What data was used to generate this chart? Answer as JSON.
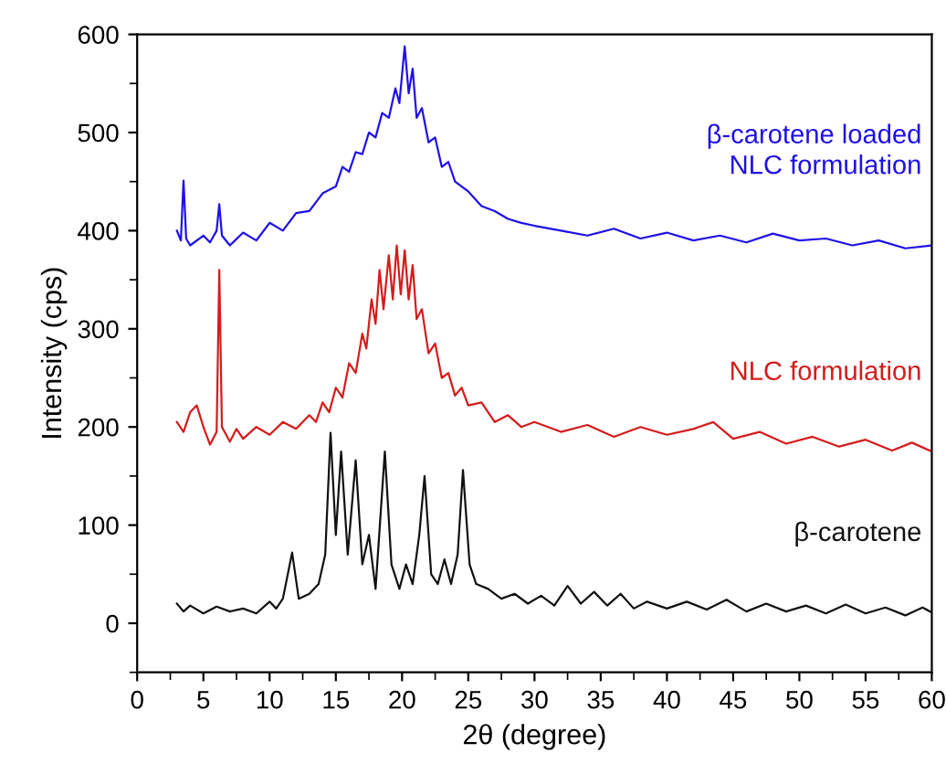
{
  "chart_data": {
    "type": "line",
    "xlabel": "2θ (degree)",
    "ylabel": "Intensity (cps)",
    "xlim": [
      0,
      60
    ],
    "xticks": [
      0,
      5,
      10,
      15,
      20,
      25,
      30,
      35,
      40,
      45,
      50,
      55,
      60
    ],
    "ylim": [
      -50,
      600
    ],
    "yticks": [
      0,
      100,
      200,
      300,
      400,
      500,
      600
    ],
    "grid": false,
    "legend": false,
    "marker": "none",
    "line_style": "solid",
    "series": [
      {
        "name": "β-carotene loaded\nNLC formulation",
        "color": "#1f10e6",
        "x": [
          3,
          3.3,
          3.5,
          3.7,
          4,
          5,
          5.5,
          6,
          6.2,
          6.4,
          7,
          8,
          9,
          10,
          11,
          12,
          13,
          14,
          15,
          15.5,
          16,
          16.5,
          17,
          17.5,
          18,
          18.5,
          19,
          19.5,
          19.8,
          20.2,
          20.5,
          20.8,
          21.1,
          21.5,
          22,
          22.5,
          23,
          23.5,
          24,
          25,
          26,
          27,
          28,
          29,
          30,
          32,
          34,
          36,
          38,
          40,
          42,
          44,
          46,
          48,
          50,
          52,
          54,
          56,
          58,
          60
        ],
        "values": [
          400,
          390,
          451,
          392,
          385,
          395,
          388,
          400,
          427,
          395,
          385,
          398,
          390,
          408,
          400,
          418,
          420,
          438,
          445,
          465,
          460,
          480,
          478,
          500,
          495,
          520,
          515,
          545,
          530,
          588,
          540,
          565,
          515,
          525,
          490,
          495,
          465,
          470,
          450,
          440,
          425,
          420,
          412,
          408,
          405,
          400,
          395,
          402,
          392,
          398,
          390,
          395,
          388,
          397,
          390,
          392,
          385,
          390,
          382,
          385
        ]
      },
      {
        "name": "NLC formulation",
        "color": "#d41c1c",
        "x": [
          3,
          3.5,
          4,
          4.5,
          5,
          5.5,
          6,
          6.2,
          6.4,
          7,
          7.5,
          8,
          9,
          10,
          11,
          12,
          13,
          13.5,
          14,
          14.5,
          15,
          15.5,
          16,
          16.5,
          17,
          17.3,
          17.7,
          18,
          18.3,
          18.6,
          19,
          19.3,
          19.6,
          19.9,
          20.2,
          20.5,
          20.8,
          21.1,
          21.5,
          22,
          22.5,
          23,
          23.5,
          24,
          24.5,
          25,
          26,
          27,
          28,
          29,
          30,
          32,
          34,
          36,
          38,
          40,
          42,
          43.5,
          45,
          47,
          49,
          51,
          53,
          55,
          57,
          58.5,
          60
        ],
        "values": [
          205,
          195,
          215,
          222,
          200,
          182,
          195,
          360,
          200,
          185,
          198,
          188,
          200,
          192,
          205,
          198,
          212,
          205,
          225,
          215,
          240,
          230,
          265,
          255,
          295,
          280,
          330,
          305,
          360,
          320,
          375,
          330,
          385,
          335,
          380,
          330,
          365,
          310,
          320,
          275,
          285,
          250,
          255,
          232,
          240,
          222,
          225,
          205,
          212,
          200,
          205,
          195,
          202,
          190,
          200,
          192,
          198,
          205,
          188,
          195,
          183,
          190,
          180,
          187,
          176,
          184,
          175
        ]
      },
      {
        "name": "β-carotene",
        "color": "#111111",
        "x": [
          3,
          3.5,
          4,
          5,
          6,
          7,
          8,
          9,
          10,
          10.5,
          11,
          11.7,
          12.2,
          13,
          13.7,
          14.2,
          14.6,
          15,
          15.4,
          15.9,
          16.5,
          17,
          17.5,
          18,
          18.7,
          19.2,
          19.8,
          20.3,
          20.8,
          21.3,
          21.7,
          22.2,
          22.7,
          23.2,
          23.7,
          24.2,
          24.6,
          25.1,
          25.6,
          26.5,
          27.5,
          28.5,
          29.5,
          30.5,
          31.5,
          32.5,
          33.5,
          34.5,
          35.5,
          36.5,
          37.5,
          38.5,
          40,
          41.5,
          43,
          44.5,
          46,
          47.5,
          49,
          50.5,
          52,
          53.5,
          55,
          56.5,
          58,
          59.3,
          60
        ],
        "values": [
          20,
          12,
          18,
          10,
          17,
          12,
          15,
          10,
          22,
          15,
          25,
          72,
          25,
          30,
          40,
          70,
          194,
          90,
          175,
          70,
          166,
          60,
          90,
          35,
          175,
          60,
          35,
          60,
          40,
          90,
          150,
          50,
          40,
          65,
          40,
          70,
          156,
          60,
          40,
          35,
          25,
          30,
          20,
          28,
          18,
          38,
          20,
          32,
          18,
          30,
          15,
          22,
          15,
          22,
          14,
          24,
          12,
          20,
          12,
          18,
          10,
          19,
          10,
          16,
          8,
          16,
          11
        ]
      }
    ]
  }
}
